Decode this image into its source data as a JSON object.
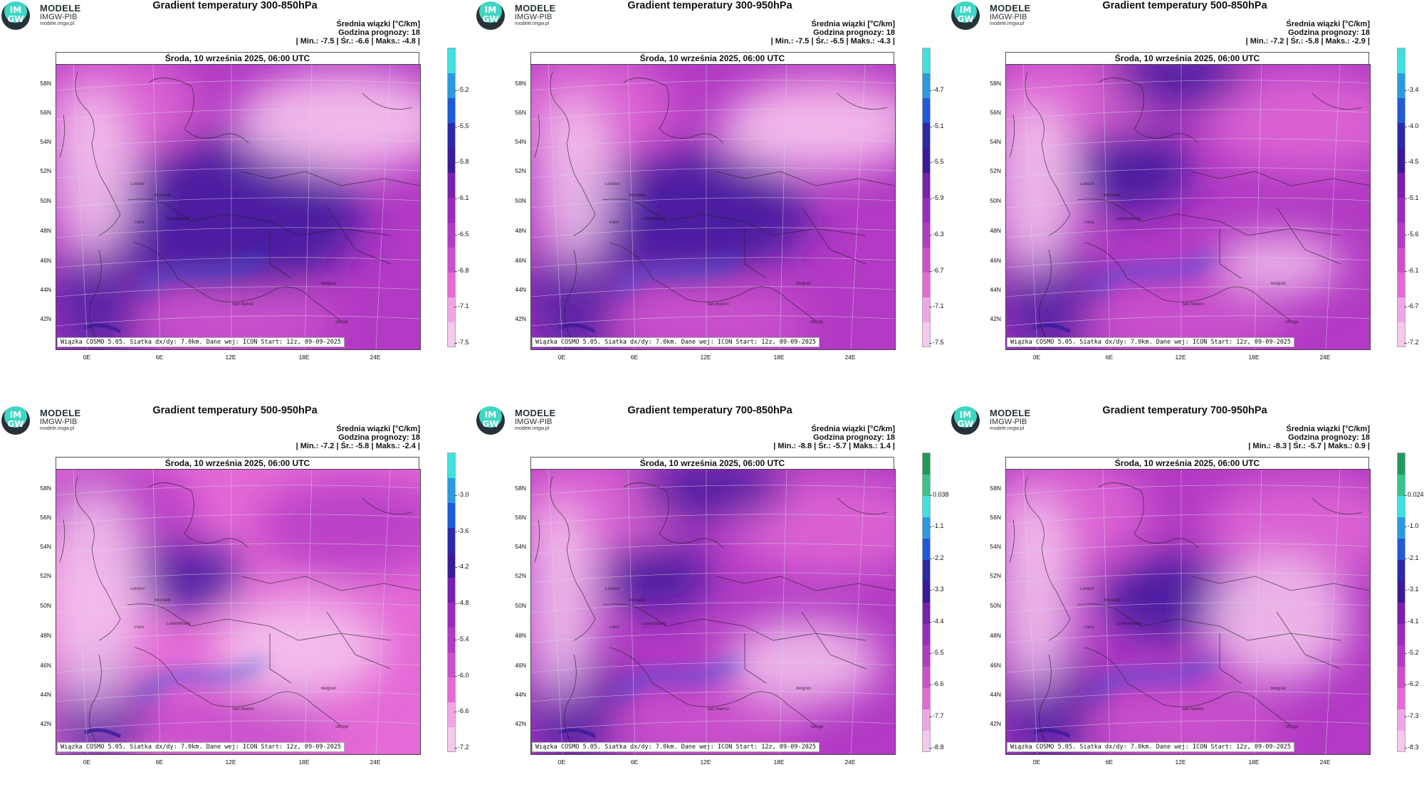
{
  "logo": {
    "mark_top": "IM",
    "mark_bottom": "GW",
    "title": "MODELE",
    "subtitle": "IMGW-PIB",
    "url": "modele.imgw.pl"
  },
  "common": {
    "date": "Środa, 10 września 2025, 06:00 UTC",
    "unit_line": "Średnia wiązki [°C/km]",
    "forecast_hour": "Godzina prognozy: 18",
    "model_note": "Wiązka COSMO 5.05. Siatka dx/dy: 7.0km. Dane wej: ICON Start: 12z, 09-09-2025",
    "lat_labels": [
      "58N",
      "56N",
      "54N",
      "52N",
      "50N",
      "48N",
      "46N",
      "44N",
      "42N"
    ],
    "lon_labels": [
      "0E",
      "6E",
      "12E",
      "18E",
      "24E"
    ],
    "cities": [
      "London",
      "Brussels",
      "Paris",
      "Luxembourg",
      "Belgrad",
      "San Marino",
      "Skopje"
    ]
  },
  "panels": [
    {
      "title": "Gradient temperatury 300-850hPa",
      "min": "-7.5",
      "avg": "-6.6",
      "max": "-4.8",
      "colorbar_ticks": [
        "-5.2",
        "-5.5",
        "-5.8",
        "-6.1",
        "-6.5",
        "-6.8",
        "-7.1",
        "-7.5"
      ],
      "colorbar_palette": "pink-purple-cyan"
    },
    {
      "title": "Gradient temperatury 300-950hPa",
      "min": "-7.5",
      "avg": "-6.5",
      "max": "-4.3",
      "colorbar_ticks": [
        "-4.7",
        "-5.1",
        "-5.5",
        "-5.9",
        "-6.3",
        "-6.7",
        "-7.1",
        "-7.5"
      ],
      "colorbar_palette": "pink-purple-cyan"
    },
    {
      "title": "Gradient temperatury 500-850hPa",
      "min": "-7.2",
      "avg": "-5.8",
      "max": "-2.9",
      "colorbar_ticks": [
        "-3.4",
        "-4.0",
        "-4.5",
        "-5.1",
        "-5.6",
        "-6.1",
        "-6.7",
        "-7.2"
      ],
      "colorbar_palette": "pink-purple-cyan"
    },
    {
      "title": "Gradient temperatury 500-950hPa",
      "min": "-7.2",
      "avg": "-5.8",
      "max": "-2.4",
      "colorbar_ticks": [
        "-3.0",
        "-3.6",
        "-4.2",
        "-4.8",
        "-5.4",
        "-6.0",
        "-6.6",
        "-7.2"
      ],
      "colorbar_palette": "pink-purple-cyan"
    },
    {
      "title": "Gradient temperatury 700-850hPa",
      "min": "-8.8",
      "avg": "-5.7",
      "max": "1.4",
      "colorbar_ticks": [
        "0.038",
        "-1.1",
        "-2.2",
        "-3.3",
        "-4.4",
        "-5.5",
        "-6.6",
        "-7.7",
        "-8.8"
      ],
      "colorbar_palette": "pink-purple-cyan-green"
    },
    {
      "title": "Gradient temperatury 700-950hPa",
      "min": "-8.3",
      "avg": "-5.7",
      "max": "0.9",
      "colorbar_ticks": [
        "0.024",
        "-1.0",
        "-2.1",
        "-3.1",
        "-4.1",
        "-5.2",
        "-6.2",
        "-7.3",
        "-8.3"
      ],
      "colorbar_palette": "pink-purple-cyan-green"
    }
  ],
  "colors": {
    "pink_light": "#f6c8ee",
    "pink": "#e46ad6",
    "magenta": "#b23ac4",
    "purple": "#7a1fb0",
    "indigo": "#3a1a9a",
    "blue": "#1f5ad8",
    "cyan": "#3fe0e0",
    "green": "#1f9a5a",
    "teal_logo": "#3fd6c4"
  }
}
